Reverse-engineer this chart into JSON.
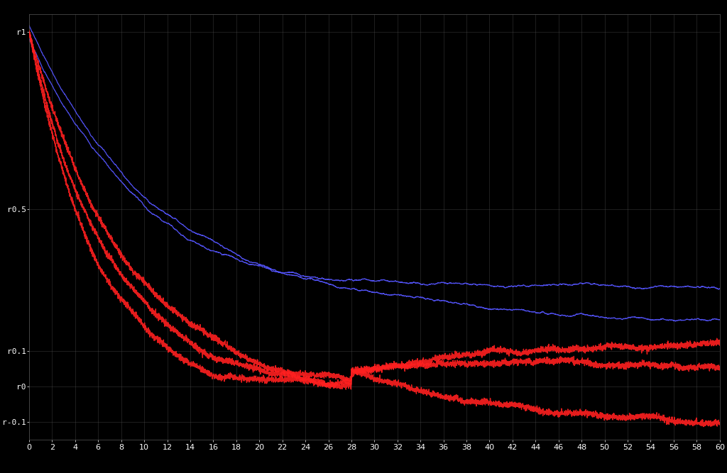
{
  "background_color": "#000000",
  "grid_color": "#555555",
  "text_color": "#ffffff",
  "blue_color": "#5555ff",
  "red_color": "#ff2020",
  "xlim": [
    0,
    60
  ],
  "ylim": [
    -0.15,
    1.05
  ],
  "yticks": [
    1.0,
    0.5,
    0.1,
    0.0,
    -0.1
  ],
  "ytick_labels": [
    "r1",
    "r0.5",
    "r0.1",
    "r0",
    "r-0.1"
  ],
  "xticks": [
    0,
    2,
    4,
    6,
    8,
    10,
    12,
    14,
    16,
    18,
    20,
    22,
    24,
    26,
    28,
    30,
    32,
    34,
    36,
    38,
    40,
    42,
    44,
    46,
    48,
    50,
    52,
    54,
    56,
    58,
    60
  ]
}
